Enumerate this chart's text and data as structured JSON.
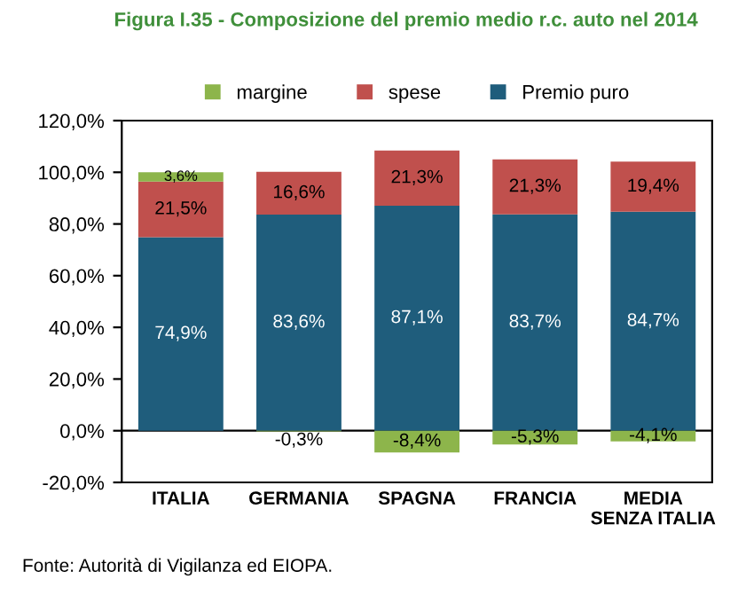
{
  "chart_data": {
    "type": "bar",
    "stacked": true,
    "title": "Figura I.35 - Composizione del premio medio r.c. auto nel 2014",
    "categories": [
      "ITALIA",
      "GERMANIA",
      "SPAGNA",
      "FRANCIA",
      "MEDIA\nSENZA ITALIA"
    ],
    "series": [
      {
        "name": "Premio puro",
        "color": "#1f5d7c",
        "values": [
          74.9,
          83.6,
          87.1,
          83.7,
          84.7
        ],
        "value_labels": [
          "74,9%",
          "83,6%",
          "87,1%",
          "83,7%",
          "84,7%"
        ]
      },
      {
        "name": "spese",
        "color": "#c0504d",
        "values": [
          21.5,
          16.6,
          21.3,
          21.3,
          19.4
        ],
        "value_labels": [
          "21,5%",
          "16,6%",
          "21,3%",
          "21,3%",
          "19,4%"
        ]
      },
      {
        "name": "margine",
        "color": "#8db54b",
        "values": [
          3.6,
          -0.3,
          -8.4,
          -5.3,
          -4.1
        ],
        "value_labels": [
          "3,6%",
          "-0,3%",
          "-8,4%",
          "-5,3%",
          "-4,1%"
        ]
      }
    ],
    "ylim": [
      -20,
      120
    ],
    "yticks": [
      {
        "value": -20,
        "label": "-20,0%"
      },
      {
        "value": 0,
        "label": "0,0%"
      },
      {
        "value": 20,
        "label": "20,0%"
      },
      {
        "value": 40,
        "label": "40,0%"
      },
      {
        "value": 60,
        "label": "60,0%"
      },
      {
        "value": 80,
        "label": "80,0%"
      },
      {
        "value": 100,
        "label": "100,0%"
      },
      {
        "value": 120,
        "label": "120,0%"
      }
    ],
    "grid": false,
    "ref_lines": [
      {
        "axis": "y",
        "value": 0,
        "color": "#000000"
      }
    ],
    "legend": "top",
    "annotations": [
      "Fonte: Autorità di Vigilanza ed EIOPA."
    ]
  }
}
